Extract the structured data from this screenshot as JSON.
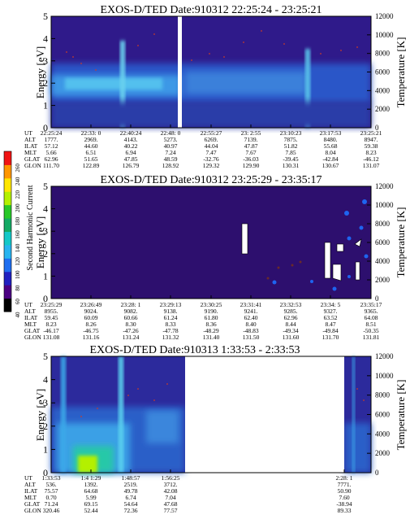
{
  "figure": {
    "colors": {
      "bg": "#ffffff",
      "axis": "#000000",
      "gap": "#ffffff",
      "panel2_bg": "#2d0f6e"
    }
  },
  "chart_data": [
    {
      "type": "heatmap",
      "title": "EXOS-D/TED   Date:910312  22:25:24 - 23:25:21",
      "ylabel": "Energy [eV]",
      "ylabel2": "Temperature [K]",
      "ylim": [
        0,
        5
      ],
      "y2lim": [
        0,
        12000
      ],
      "y_ticks": [
        "0",
        "1",
        "2",
        "3",
        "4",
        "5"
      ],
      "y2_ticks": [
        "0",
        "2000",
        "4000",
        "6000",
        "8000",
        "10000",
        "12000"
      ],
      "x_ticks": [
        "22:25:24",
        "22:33: 0",
        "22:40:24",
        "22:48: 0",
        "22:55:27",
        "23: 2:55",
        "23:10:23",
        "23:17:53",
        "23:25:21"
      ],
      "orbit_rows": [
        {
          "label": "UT",
          "values": [
            "22:25:24",
            "22:33: 0",
            "22:40:24",
            "22:48: 0",
            "22:55:27",
            "23: 2:55",
            "23:10:23",
            "23:17:53",
            "23:25:21"
          ]
        },
        {
          "label": "ALT",
          "values": [
            "1777.",
            "2969.",
            "4143.",
            "5273.",
            "6269.",
            "7139.",
            "7875.",
            "8480.",
            "8947."
          ]
        },
        {
          "label": "ILAT",
          "values": [
            "57.12",
            "44.60",
            "40.22",
            "40.97",
            "44.04",
            "47.87",
            "51.82",
            "55.68",
            "59.38"
          ]
        },
        {
          "label": "MLT",
          "values": [
            "5.66",
            "6.51",
            "6.94",
            "7.24",
            "7.47",
            "7.67",
            "7.85",
            "8.04",
            "8.23"
          ]
        },
        {
          "label": "GLAT",
          "values": [
            "62.96",
            "51.65",
            "47.85",
            "48.59",
            "-32.76",
            "-36.03",
            "-39.45",
            "-42.84",
            "-46.12"
          ]
        },
        {
          "label": "GLON",
          "values": [
            "111.70",
            "122.89",
            "126.79",
            "128.92",
            "129.32",
            "129.90",
            "130.31",
            "130.67",
            "131.07"
          ]
        }
      ],
      "data_gap_at": "22:48: 0",
      "notes": "spectrogram; dominant band 1.3-2.6 eV with temperature trace (red dots) 5000-10000 K"
    },
    {
      "type": "heatmap",
      "title": "EXOS-D/TED   Date:910312  23:25:29 - 23:35:17",
      "ylabel": "Energy [eV]",
      "ylabel2": "Temperature [K]",
      "ylim": [
        0,
        5
      ],
      "y2lim": [
        0,
        12000
      ],
      "y_ticks": [
        "0",
        "1",
        "2",
        "3",
        "4",
        "5"
      ],
      "y2_ticks": [
        "0",
        "2000",
        "4000",
        "6000",
        "8000",
        "10000",
        "12000"
      ],
      "x_ticks": [
        "23:25:29",
        "23:26:49",
        "23:28: 1",
        "23:29:13",
        "23:30:25",
        "23:31:41",
        "23:32:53",
        "23:34: 5",
        "23:35:17"
      ],
      "orbit_rows": [
        {
          "label": "UT",
          "values": [
            "23:25:29",
            "23:26:49",
            "23:28: 1",
            "23:29:13",
            "23:30:25",
            "23:31:41",
            "23:32:53",
            "23:34: 5",
            "23:35:17"
          ]
        },
        {
          "label": "ALT",
          "values": [
            "8955.",
            "9024.",
            "9082.",
            "9138.",
            "9190.",
            "9241.",
            "9285.",
            "9327.",
            "9365."
          ]
        },
        {
          "label": "ILAT",
          "values": [
            "59.45",
            "60.09",
            "60.66",
            "61.24",
            "61.80",
            "62.40",
            "62.96",
            "63.52",
            "64.08"
          ]
        },
        {
          "label": "MLT",
          "values": [
            "8.23",
            "8.26",
            "8.30",
            "8.33",
            "8.36",
            "8.40",
            "8.44",
            "8.47",
            "8.51"
          ]
        },
        {
          "label": "GLAT",
          "values": [
            "-46.17",
            "-46.75",
            "-47.26",
            "-47.78",
            "-48.29",
            "-48.83",
            "-49.34",
            "-49.84",
            "-50.35"
          ]
        },
        {
          "label": "GLON",
          "values": [
            "131.08",
            "131.16",
            "131.24",
            "131.32",
            "131.40",
            "131.50",
            "131.60",
            "131.70",
            "131.81"
          ]
        }
      ],
      "notes": "mostly dark background; isolated white/bright patches after 23:31"
    },
    {
      "type": "heatmap",
      "title": "EXOS-D/TED   Date:910313   1:33:53 -  2:33:53",
      "ylabel": "Energy [eV]",
      "ylabel2": "Temperature [K]",
      "ylim": [
        0,
        5
      ],
      "y2lim": [
        0,
        12000
      ],
      "y_ticks": [
        "0",
        "1",
        "2",
        "3",
        "4",
        "5"
      ],
      "y2_ticks": [
        "0",
        "2000",
        "4000",
        "6000",
        "8000",
        "10000",
        "12000"
      ],
      "x_ticks": [
        "1:33:53",
        "1:41:29",
        "1:48:57",
        "1:56:25",
        "2:28: 1"
      ],
      "orbit_rows": [
        {
          "label": "UT",
          "values": [
            "1:33:53",
            "1:4 1:29",
            "1:48:57",
            "1:56:25",
            "2:28: 1"
          ]
        },
        {
          "label": "ALT",
          "values": [
            "536.",
            "1392.",
            "2519.",
            "3712.",
            "7771."
          ]
        },
        {
          "label": "ILAT",
          "values": [
            "75.57",
            "64.68",
            "49.78",
            "42.08",
            "50.90"
          ]
        },
        {
          "label": "MLT",
          "values": [
            "0.70",
            "5.99",
            "6.74",
            "7.04",
            "7.60"
          ]
        },
        {
          "label": "GLAT",
          "values": [
            "71.24",
            "69.15",
            "54.64",
            "47.68",
            "-38.94"
          ]
        },
        {
          "label": "GLON",
          "values": [
            "320.46",
            "52.44",
            "72.36",
            "77.57",
            "89.33"
          ]
        }
      ],
      "data_gap": "1:57 - 2:23 (no data)",
      "notes": "spectrogram with strong low-energy green/yellow enhancement near 1:36"
    }
  ],
  "colorbar": {
    "label": "Second Harmonic Current",
    "ticks": [
      "40",
      "60",
      "80",
      "100",
      "120",
      "140",
      "160",
      "180",
      "200",
      "220",
      "240",
      "260"
    ],
    "colors": [
      "#000000",
      "#4b0082",
      "#2020c0",
      "#1e6ef0",
      "#28b4f0",
      "#14c8c8",
      "#14aa64",
      "#28c828",
      "#b4f000",
      "#ffe600",
      "#ff9600",
      "#f01414"
    ]
  }
}
